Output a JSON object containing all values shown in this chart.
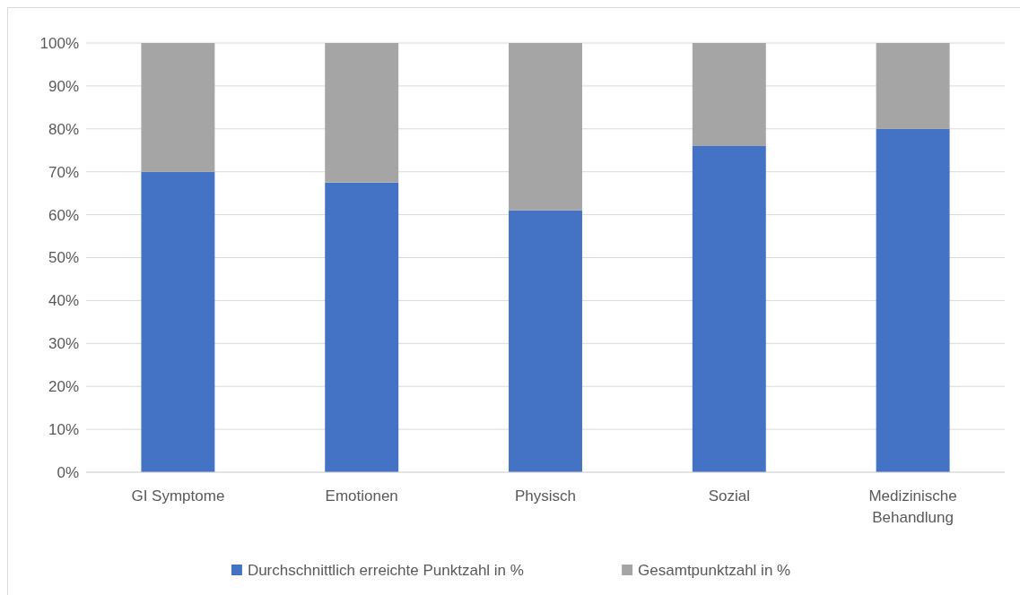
{
  "chart_data": {
    "type": "bar",
    "stacked": true,
    "categories": [
      "GI Symptome",
      "Emotionen",
      "Physisch",
      "Sozial",
      "Medizinische Behandlung"
    ],
    "series": [
      {
        "name": "Durchschnittlich erreichte Punktzahl in %",
        "color": "#4472c4",
        "values": [
          70,
          67.5,
          61,
          76,
          80
        ]
      },
      {
        "name": "Gesamtpunktzahl in %",
        "color": "#a5a5a5",
        "values": [
          30,
          32.5,
          39,
          24,
          20
        ]
      }
    ],
    "ylim": [
      0,
      100
    ],
    "yticks": [
      {
        "value": 0,
        "label": "0%"
      },
      {
        "value": 10,
        "label": "10%"
      },
      {
        "value": 20,
        "label": "20%"
      },
      {
        "value": 30,
        "label": "30%"
      },
      {
        "value": 40,
        "label": "40%"
      },
      {
        "value": 50,
        "label": "50%"
      },
      {
        "value": 60,
        "label": "60%"
      },
      {
        "value": 70,
        "label": "70%"
      },
      {
        "value": 80,
        "label": "80%"
      },
      {
        "value": 90,
        "label": "90%"
      },
      {
        "value": 100,
        "label": "100%"
      }
    ],
    "grid": "y",
    "legend": "bottom"
  }
}
